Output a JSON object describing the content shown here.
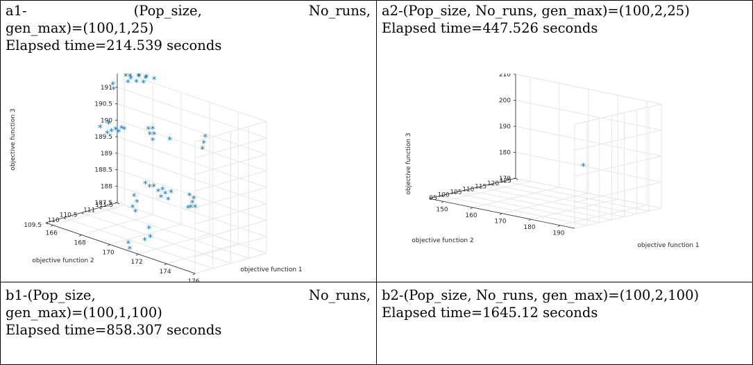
{
  "panels": {
    "a1": {
      "caption": {
        "justified_words": [
          "a1-",
          "(Pop_size,",
          "No_runs,"
        ],
        "line2": "gen_max)=(100,1,25)",
        "line3": "Elapsed time=214.539 seconds"
      }
    },
    "a2": {
      "caption": {
        "line1": "a2-(Pop_size, No_runs, gen_max)=(100,2,25)",
        "line2": "Elapsed time=447.526 seconds"
      }
    },
    "b1": {
      "caption": {
        "justified_words": [
          "b1-(Pop_size,",
          "No_runs,"
        ],
        "line2": "gen_max)=(100,1,100)",
        "line3": "Elapsed time=858.307 seconds"
      }
    },
    "b2": {
      "caption": {
        "line1": "b2-(Pop_size, No_runs, gen_max)=(100,2,100)",
        "line2": "Elapsed time=1645.12 seconds"
      }
    }
  },
  "chart_data": [
    {
      "type": "scatter",
      "panel": "a1",
      "marker": "*",
      "marker_color": "#0072BD",
      "xlabel": "objective function 1",
      "ylabel": "objective function 2",
      "zlabel": "objective function 3",
      "xlim": [
        165.5,
        176
      ],
      "ylim": [
        109.5,
        111.5
      ],
      "zlim": [
        187.5,
        191.5
      ],
      "x_ticks": [
        "166",
        "168",
        "170",
        "172",
        "174",
        "176"
      ],
      "y_ticks": [
        "109.5",
        "110",
        "110.5",
        "111",
        "111.5"
      ],
      "z_ticks": [
        "187.5",
        "188",
        "188.5",
        "189",
        "189.5",
        "190",
        "190.5",
        "191"
      ],
      "grid": true,
      "points": [
        {
          "x": 166.6,
          "y": 111.3,
          "z": 191.55
        },
        {
          "x": 166.9,
          "y": 111.3,
          "z": 191.6
        },
        {
          "x": 167.2,
          "y": 111.2,
          "z": 191.6
        },
        {
          "x": 167.5,
          "y": 111.3,
          "z": 191.7
        },
        {
          "x": 167.8,
          "y": 111.2,
          "z": 191.75
        },
        {
          "x": 168.0,
          "y": 111.3,
          "z": 191.7
        },
        {
          "x": 168.3,
          "y": 111.2,
          "z": 191.8
        },
        {
          "x": 168.6,
          "y": 111.3,
          "z": 191.75
        },
        {
          "x": 166.2,
          "y": 111.1,
          "z": 191.3
        },
        {
          "x": 166.0,
          "y": 111.2,
          "z": 191.1
        },
        {
          "x": 167.0,
          "y": 111.2,
          "z": 191.45
        },
        {
          "x": 167.6,
          "y": 111.2,
          "z": 191.55
        },
        {
          "x": 168.1,
          "y": 111.2,
          "z": 191.6
        },
        {
          "x": 165.8,
          "y": 110.9,
          "z": 190.0
        },
        {
          "x": 166.3,
          "y": 110.9,
          "z": 189.9
        },
        {
          "x": 166.6,
          "y": 110.9,
          "z": 190.0
        },
        {
          "x": 166.9,
          "y": 110.9,
          "z": 190.1
        },
        {
          "x": 166.4,
          "y": 110.9,
          "z": 190.2
        },
        {
          "x": 167.3,
          "y": 110.9,
          "z": 190.2
        },
        {
          "x": 167.5,
          "y": 110.9,
          "z": 190.2
        },
        {
          "x": 167.1,
          "y": 110.9,
          "z": 190.05
        },
        {
          "x": 169.2,
          "y": 110.9,
          "z": 190.45
        },
        {
          "x": 169.5,
          "y": 110.9,
          "z": 190.5
        },
        {
          "x": 169.3,
          "y": 110.9,
          "z": 190.3
        },
        {
          "x": 169.6,
          "y": 110.9,
          "z": 190.35
        },
        {
          "x": 169.5,
          "y": 110.9,
          "z": 190.15
        },
        {
          "x": 170.7,
          "y": 110.9,
          "z": 190.35
        },
        {
          "x": 173.1,
          "y": 110.9,
          "z": 190.6
        },
        {
          "x": 173.2,
          "y": 110.9,
          "z": 190.8
        },
        {
          "x": 173.0,
          "y": 110.9,
          "z": 190.4
        },
        {
          "x": 171.0,
          "y": 110.1,
          "z": 189.3
        },
        {
          "x": 171.3,
          "y": 110.1,
          "z": 189.25
        },
        {
          "x": 171.6,
          "y": 110.1,
          "z": 189.3
        },
        {
          "x": 171.9,
          "y": 110.1,
          "z": 189.2
        },
        {
          "x": 172.2,
          "y": 110.1,
          "z": 189.3
        },
        {
          "x": 172.4,
          "y": 110.1,
          "z": 189.2
        },
        {
          "x": 172.8,
          "y": 110.1,
          "z": 189.3
        },
        {
          "x": 172.1,
          "y": 110.1,
          "z": 189.05
        },
        {
          "x": 172.6,
          "y": 110.1,
          "z": 189.05
        },
        {
          "x": 174.1,
          "y": 110.1,
          "z": 189.4
        },
        {
          "x": 174.3,
          "y": 110.1,
          "z": 189.2
        },
        {
          "x": 174.2,
          "y": 110.1,
          "z": 189.05
        },
        {
          "x": 174.5,
          "y": 110.1,
          "z": 189.1
        },
        {
          "x": 174.0,
          "y": 110.1,
          "z": 189.0
        },
        {
          "x": 174.4,
          "y": 110.1,
          "z": 189.35
        },
        {
          "x": 170.2,
          "y": 110.1,
          "z": 188.8
        },
        {
          "x": 170.4,
          "y": 110.1,
          "z": 188.65
        },
        {
          "x": 170.1,
          "y": 110.1,
          "z": 188.45
        },
        {
          "x": 170.3,
          "y": 110.1,
          "z": 188.35
        },
        {
          "x": 171.5,
          "y": 110.0,
          "z": 188.05
        },
        {
          "x": 171.6,
          "y": 110.0,
          "z": 187.8
        },
        {
          "x": 171.2,
          "y": 110.0,
          "z": 187.65
        },
        {
          "x": 170.3,
          "y": 109.9,
          "z": 187.45
        },
        {
          "x": 170.4,
          "y": 109.9,
          "z": 187.3
        }
      ]
    },
    {
      "type": "scatter",
      "panel": "a2",
      "marker": "*",
      "marker_color": "#0072BD",
      "xlabel": "objective function 1",
      "ylabel": "objective function 2",
      "zlabel": "objective function 3",
      "xlim": [
        145,
        195
      ],
      "ylim": [
        90,
        125
      ],
      "zlim": [
        170,
        210
      ],
      "x_ticks": [
        "150",
        "160",
        "170",
        "180",
        "190"
      ],
      "y_ticks": [
        "95",
        "100",
        "105",
        "110",
        "115",
        "120",
        "125"
      ],
      "z_ticks": [
        "170",
        "180",
        "190",
        "200",
        "210"
      ],
      "grid": true,
      "points": [
        {
          "x": 184.5,
          "y": 105.8,
          "z": 188.0
        }
      ]
    }
  ]
}
